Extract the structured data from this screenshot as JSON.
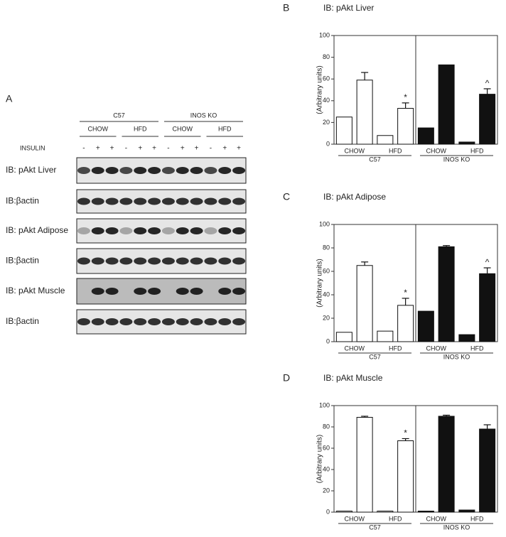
{
  "blot": {
    "panel": "A",
    "groups": [
      {
        "name": "C57",
        "diets": [
          "CHOW",
          "HFD"
        ]
      },
      {
        "name": "INOS KO",
        "diets": [
          "CHOW",
          "HFD"
        ]
      }
    ],
    "insulin_label": "INSULIN",
    "insulin": [
      "-",
      "+",
      "+",
      "-",
      "+",
      "+",
      "-",
      "+",
      "+",
      "-",
      "+",
      "+"
    ],
    "rows": [
      "IB: pAkt Liver",
      "IB:βactin",
      "IB: pAkt Adipose",
      "IB:βactin",
      "IB: pAkt Muscle",
      "IB:βactin"
    ]
  },
  "chart_data": [
    {
      "type": "bar",
      "panel": "B",
      "title": "IB: pAkt Liver",
      "ylabel": "(Arbitrary units)",
      "ylim": [
        0,
        100
      ],
      "yticks": [
        0,
        20,
        40,
        60,
        80,
        100
      ],
      "groups": [
        {
          "name": "C57",
          "color": "#ffffff",
          "subgroups": [
            "CHOW",
            "HFD"
          ]
        },
        {
          "name": "INOS KO",
          "color": "#111111",
          "subgroups": [
            "CHOW",
            "HFD"
          ]
        }
      ],
      "values": [
        25,
        59,
        8,
        33,
        15,
        73,
        2,
        46
      ],
      "errors": [
        null,
        7,
        null,
        5,
        null,
        null,
        null,
        5
      ],
      "value_annotations": [
        null,
        null,
        null,
        "*",
        null,
        null,
        null,
        "^"
      ]
    },
    {
      "type": "bar",
      "panel": "C",
      "title": "IB: pAkt Adipose",
      "ylabel": "(Arbitrary units)",
      "ylim": [
        0,
        100
      ],
      "yticks": [
        0,
        20,
        40,
        60,
        80,
        100
      ],
      "groups": [
        {
          "name": "C57",
          "color": "#ffffff",
          "subgroups": [
            "CHOW",
            "HFD"
          ]
        },
        {
          "name": "INOS KO",
          "color": "#111111",
          "subgroups": [
            "CHOW",
            "HFD"
          ]
        }
      ],
      "values": [
        8,
        65,
        9,
        31,
        26,
        81,
        6,
        58
      ],
      "errors": [
        null,
        3,
        null,
        6,
        null,
        1,
        null,
        5
      ],
      "value_annotations": [
        null,
        null,
        null,
        "*",
        null,
        null,
        null,
        "^"
      ]
    },
    {
      "type": "bar",
      "panel": "D",
      "title": "IB: pAkt Muscle",
      "ylabel": "(Arbitrary units)",
      "ylim": [
        0,
        100
      ],
      "yticks": [
        0,
        20,
        40,
        60,
        80,
        100
      ],
      "groups": [
        {
          "name": "C57",
          "color": "#ffffff",
          "subgroups": [
            "CHOW",
            "HFD"
          ]
        },
        {
          "name": "INOS KO",
          "color": "#111111",
          "subgroups": [
            "CHOW",
            "HFD"
          ]
        }
      ],
      "values": [
        1,
        89,
        1,
        67,
        1,
        90,
        2,
        78
      ],
      "errors": [
        null,
        1,
        null,
        2,
        null,
        1,
        null,
        4
      ],
      "value_annotations": [
        null,
        null,
        null,
        "*",
        null,
        null,
        null,
        null
      ]
    }
  ]
}
